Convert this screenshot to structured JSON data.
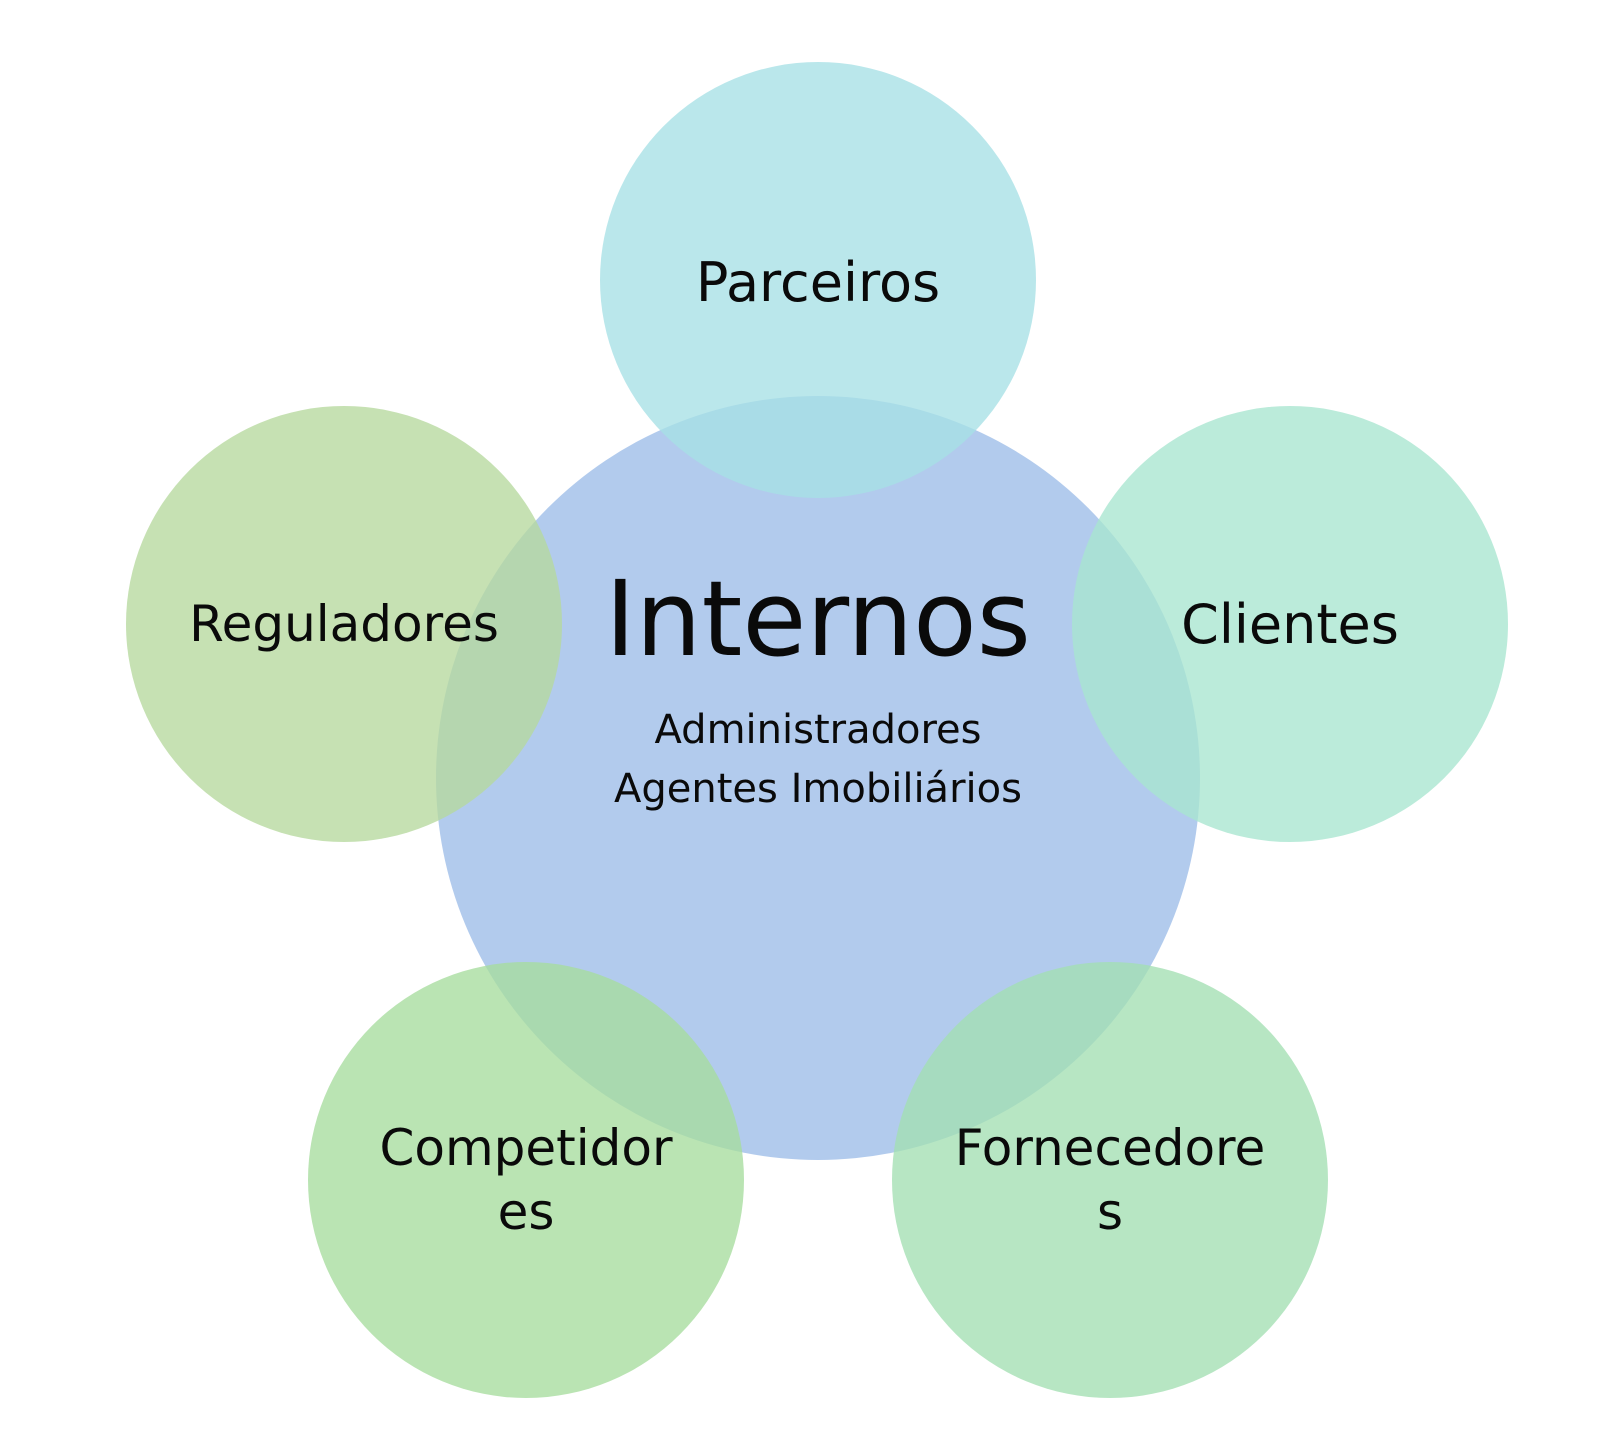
{
  "diagram": {
    "center": {
      "title": "Internos",
      "lines": [
        "Administradores",
        "Agentes Imobiliários"
      ],
      "color": "#a4c2ea"
    },
    "satellites": [
      {
        "id": "parceiros",
        "lines": [
          "Parceiros"
        ],
        "color": "#a7e0e6"
      },
      {
        "id": "clientes",
        "lines": [
          "Clientes"
        ],
        "color": "#a8e6d0"
      },
      {
        "id": "fornecedores",
        "lines": [
          "Fornecedore",
          "s"
        ],
        "color": "#a3dfb2"
      },
      {
        "id": "competidores",
        "lines": [
          "Competidor",
          "es"
        ],
        "color": "#a6dc9e"
      },
      {
        "id": "reguladores",
        "lines": [
          "Reguladores"
        ],
        "color": "#b6d89e"
      }
    ]
  }
}
